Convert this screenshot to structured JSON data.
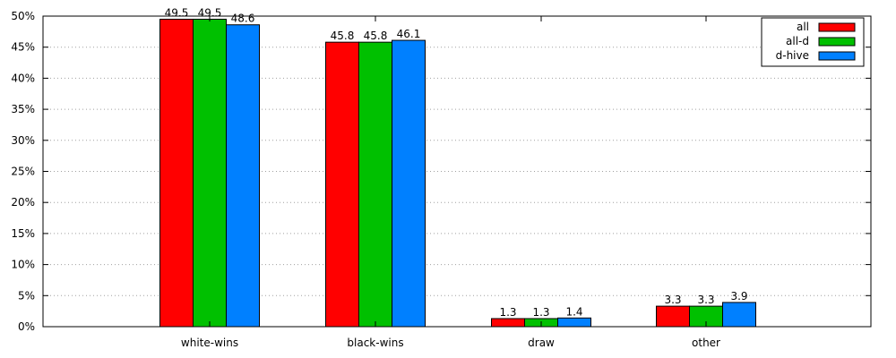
{
  "chart_data": {
    "type": "bar",
    "title": "",
    "xlabel": "",
    "ylabel": "",
    "categories": [
      "white-wins",
      "black-wins",
      "draw",
      "other"
    ],
    "series": [
      {
        "name": "all",
        "color": "#ff0000",
        "values": [
          49.5,
          45.8,
          1.3,
          3.3
        ],
        "labels": [
          "49.5",
          "45.8",
          "1.3",
          "3.3"
        ]
      },
      {
        "name": "all-d",
        "color": "#00c000",
        "values": [
          49.5,
          45.8,
          1.3,
          3.3
        ],
        "labels": [
          "49.5",
          "45.8",
          "1.3",
          "3.3"
        ]
      },
      {
        "name": "d-hive",
        "color": "#0080ff",
        "values": [
          48.6,
          46.1,
          1.4,
          3.9
        ],
        "labels": [
          "48.6",
          "46.1",
          "1.4",
          "3.9"
        ]
      }
    ],
    "ylim": [
      0,
      50
    ],
    "yticks": [
      0,
      5,
      10,
      15,
      20,
      25,
      30,
      35,
      40,
      45,
      50
    ],
    "ytick_labels": [
      "0%",
      "5%",
      "10%",
      "15%",
      "20%",
      "25%",
      "30%",
      "35%",
      "40%",
      "45%",
      "50%"
    ],
    "grid": "horizontal dotted",
    "legend_position": "top-right"
  }
}
